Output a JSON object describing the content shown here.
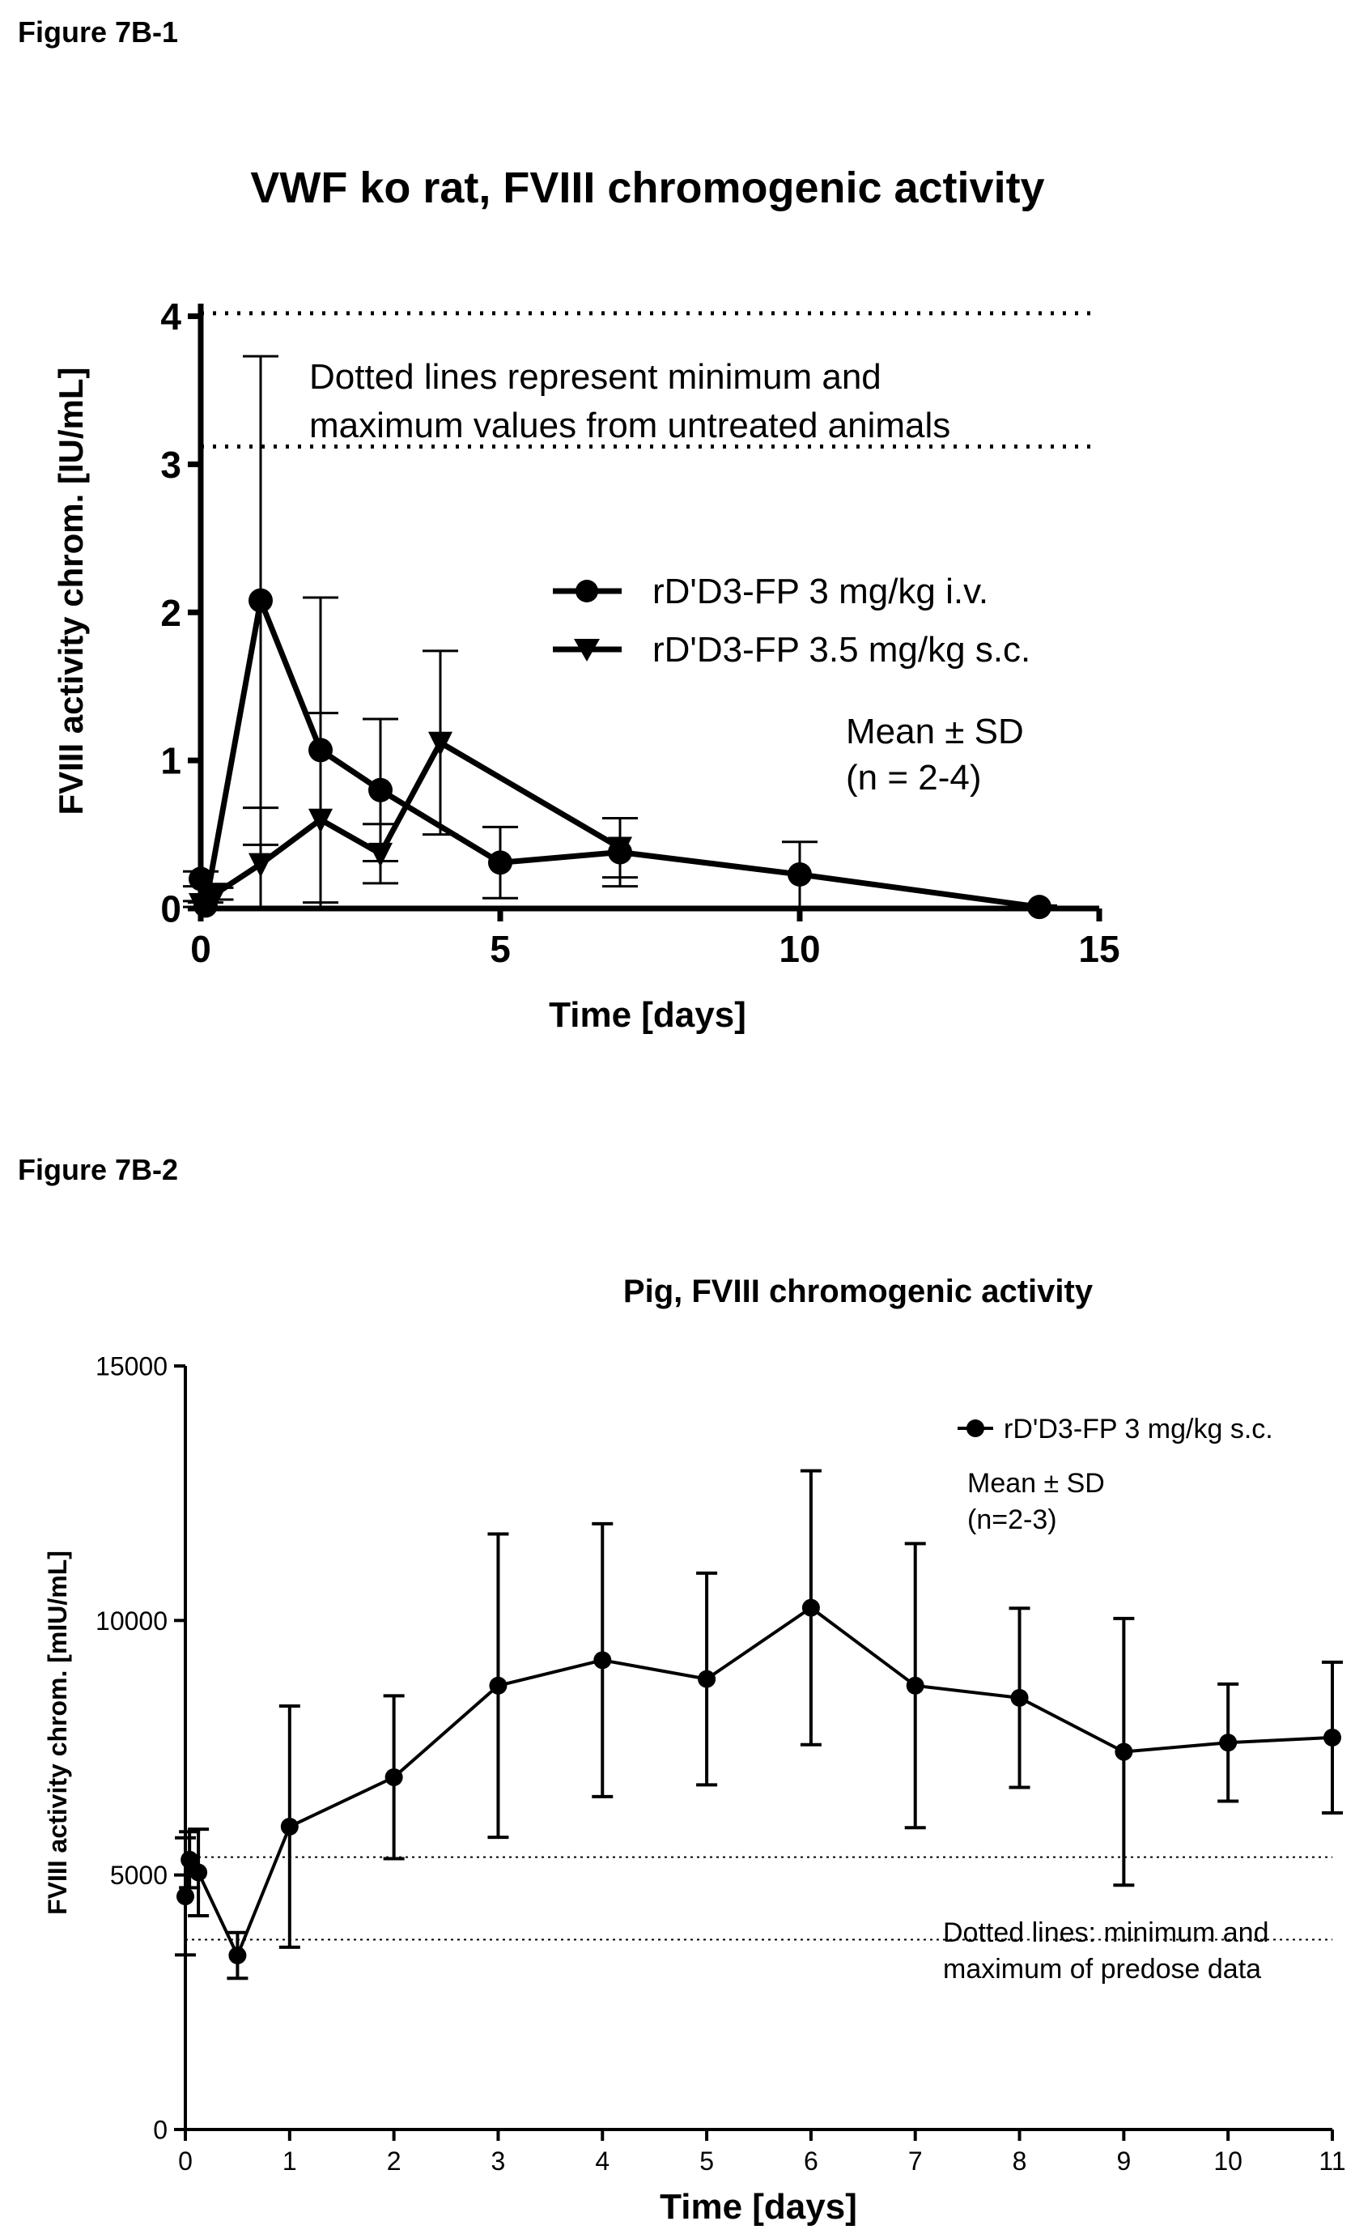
{
  "chart_data": [
    {
      "figure_label": "Figure 7B-1",
      "type": "line",
      "title": "VWF ko rat, FVIII chromogenic activity",
      "xlabel": "Time [days]",
      "ylabel": "FVIII activity chrom. [IU/mL]",
      "xlim": [
        0,
        15
      ],
      "ylim": [
        0,
        4.2
      ],
      "xticks": [
        0,
        5,
        10,
        15
      ],
      "yticks": [
        0,
        1,
        2,
        3,
        4
      ],
      "grid": false,
      "legend_position": "right",
      "reference_lines": [
        {
          "y": 4.02,
          "style": "dotted"
        },
        {
          "y": 3.12,
          "style": "dotted"
        }
      ],
      "annotations": [
        "Dotted lines represent minimum and",
        "maximum values from untreated animals",
        "Mean ± SD",
        "(n = 2-4)"
      ],
      "series": [
        {
          "name": "rD'D3-FP 3 mg/kg i.v.",
          "marker": "circle",
          "x": [
            0,
            0.08,
            1,
            2,
            3,
            5,
            7,
            10,
            14
          ],
          "y": [
            0.2,
            0.02,
            2.08,
            1.07,
            0.8,
            0.31,
            0.38,
            0.23,
            0.01
          ],
          "sd": [
            0.05,
            0.02,
            1.65,
            1.03,
            0.48,
            0.24,
            0.23,
            0.22,
            0.01
          ]
        },
        {
          "name": "rD'D3-FP 3.5 mg/kg s.c.",
          "marker": "triangle-down",
          "x": [
            0,
            0.25,
            1,
            2,
            3,
            4,
            7
          ],
          "y": [
            0.03,
            0.1,
            0.3,
            0.6,
            0.37,
            1.12,
            0.41
          ],
          "sd": [
            0.02,
            0.04,
            0.38,
            0.72,
            0.2,
            0.62,
            0.2
          ]
        }
      ]
    },
    {
      "figure_label": "Figure 7B-2",
      "type": "line",
      "title": "Pig, FVIII chromogenic activity",
      "xlabel": "Time [days]",
      "ylabel": "FVIII activity chrom. [mIU/mL]",
      "xlim": [
        0,
        11
      ],
      "ylim": [
        0,
        15000
      ],
      "xticks": [
        0,
        1,
        2,
        3,
        4,
        5,
        6,
        7,
        8,
        9,
        10,
        11
      ],
      "yticks": [
        0,
        5000,
        10000,
        15000
      ],
      "grid": false,
      "legend_position": "top-right",
      "reference_lines": [
        {
          "y": 5350,
          "style": "dotted"
        },
        {
          "y": 3730,
          "style": "dotted"
        }
      ],
      "annotations": [
        "Mean ± SD",
        "(n=2-3)",
        "Dotted lines: minimum and",
        "maximum of predose data"
      ],
      "series": [
        {
          "name": "rD'D3-FP 3 mg/kg s.c.",
          "marker": "circle",
          "x": [
            0,
            0.04,
            0.125,
            0.5,
            1,
            2,
            3,
            4,
            5,
            6,
            7,
            8,
            9,
            10,
            11
          ],
          "y": [
            4580,
            5300,
            5050,
            3420,
            5950,
            6920,
            8720,
            9220,
            8850,
            10250,
            8720,
            8480,
            7420,
            7600,
            7700
          ],
          "sd": [
            1150,
            550,
            850,
            450,
            2370,
            1600,
            2980,
            2680,
            2080,
            2690,
            2790,
            1760,
            2620,
            1150,
            1480
          ]
        }
      ]
    }
  ]
}
